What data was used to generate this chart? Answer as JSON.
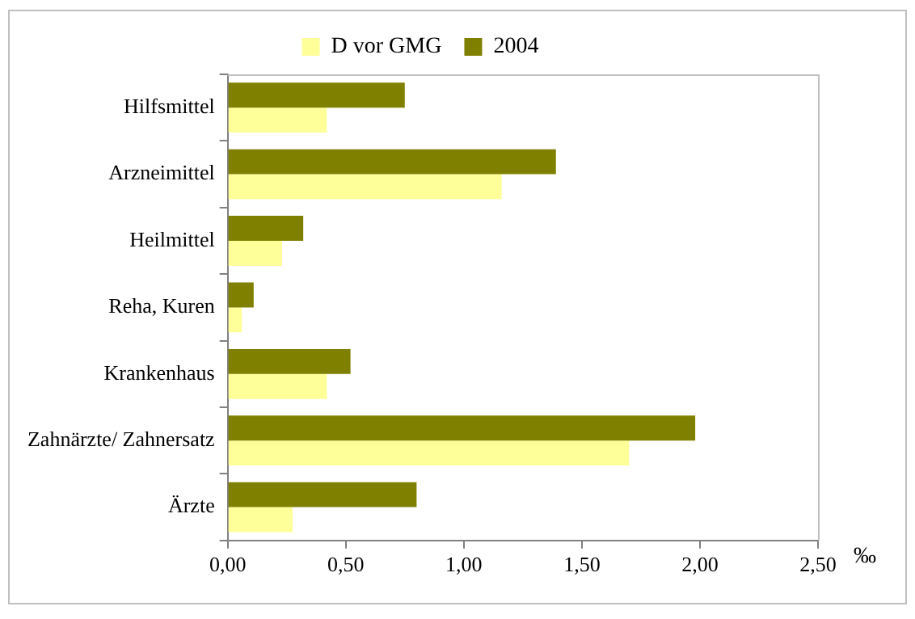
{
  "chart_data": {
    "type": "bar",
    "orientation": "horizontal",
    "xlabel": "‰",
    "categories": [
      "Hilfsmittel",
      "Arzneimittel",
      "Heilmittel",
      "Reha, Kuren",
      "Krankenhaus",
      "Zahnärzte/ Zahnersatz",
      "Ärzte"
    ],
    "series": [
      {
        "name": "D vor GMG",
        "color": "#ffff99",
        "values": [
          0.42,
          1.16,
          0.23,
          0.06,
          0.42,
          1.7,
          0.275
        ]
      },
      {
        "name": "2004",
        "color": "#808000",
        "values": [
          0.75,
          1.39,
          0.32,
          0.11,
          0.52,
          1.98,
          0.8
        ]
      }
    ],
    "xlim": [
      0,
      2.5
    ],
    "xticks": [
      {
        "value": 0,
        "label": "0,00"
      },
      {
        "value": 0.5,
        "label": "0,50"
      },
      {
        "value": 1,
        "label": "1,00"
      },
      {
        "value": 1.5,
        "label": "1,50"
      },
      {
        "value": 2,
        "label": "2,00"
      },
      {
        "value": 2.5,
        "label": "2,50"
      }
    ],
    "grid": false,
    "legend": "top"
  }
}
